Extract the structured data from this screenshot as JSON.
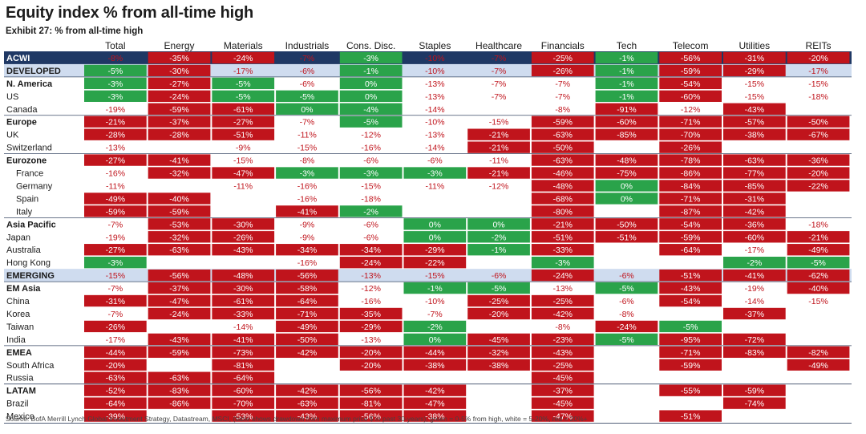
{
  "title": "Equity index % from all-time high",
  "subtitle": "Exhibit 27: % from all-time high",
  "source": "Source: BofA Merrill Lynch Global Investment Strategy, Datastream, MSCI, (table shows drawdown from maximum price $ in past 30-years), green = 0-5% from high, white = 5-20%, red = 20%+",
  "colors": {
    "red": "#c0141c",
    "green": "#2aa34a",
    "navy": "#1f3864",
    "lightblue": "#cfdcef",
    "white": "#ffffff",
    "text_dark": "#1a1a1a",
    "text_red": "#c0141c",
    "text_white": "#ffffff"
  },
  "chart_data": {
    "type": "table",
    "columns": [
      "Total",
      "Energy",
      "Materials",
      "Industrials",
      "Cons. Disc.",
      "Staples",
      "Healthcare",
      "Financials",
      "Tech",
      "Telecom",
      "Utilities",
      "REITs"
    ],
    "rows": [
      {
        "name": "ACWI",
        "bold": true,
        "band": "navy",
        "values": [
          "-8%",
          "-35%",
          "-24%",
          "-7%",
          "-3%",
          "-10%",
          "-7%",
          "-25%",
          "-1%",
          "-56%",
          "-31%",
          "-20%"
        ]
      },
      {
        "name": "DEVELOPED",
        "bold": true,
        "band": "lightblue",
        "values": [
          "-5%",
          "-30%",
          "-17%",
          "-6%",
          "-1%",
          "-10%",
          "-7%",
          "-26%",
          "-1%",
          "-59%",
          "-29%",
          "-17%"
        ]
      },
      {
        "name": "N. America",
        "bold": true,
        "values": [
          "-3%",
          "-27%",
          "-5%",
          "-6%",
          "0%",
          "-13%",
          "-7%",
          "-7%",
          "-1%",
          "-54%",
          "-15%",
          "-15%"
        ]
      },
      {
        "name": "US",
        "values": [
          "-3%",
          "-24%",
          "-5%",
          "-5%",
          "0%",
          "-13%",
          "-7%",
          "-7%",
          "-1%",
          "-60%",
          "-15%",
          "-18%"
        ]
      },
      {
        "name": "Canada",
        "values": [
          "-19%",
          "-59%",
          "-61%",
          "0%",
          "-4%",
          "-14%",
          "",
          "-8%",
          "-91%",
          "-12%",
          "-43%",
          ""
        ]
      },
      {
        "name": "Europe",
        "bold": true,
        "values": [
          "-21%",
          "-37%",
          "-27%",
          "-7%",
          "-5%",
          "-10%",
          "-15%",
          "-59%",
          "-60%",
          "-71%",
          "-57%",
          "-50%"
        ]
      },
      {
        "name": "UK",
        "values": [
          "-28%",
          "-28%",
          "-51%",
          "-11%",
          "-12%",
          "-13%",
          "-21%",
          "-63%",
          "-85%",
          "-70%",
          "-38%",
          "-67%"
        ]
      },
      {
        "name": "Switzerland",
        "values": [
          "-13%",
          "",
          "-9%",
          "-15%",
          "-16%",
          "-14%",
          "-21%",
          "-50%",
          "",
          "-26%",
          "",
          ""
        ]
      },
      {
        "name": "Eurozone",
        "bold": true,
        "values": [
          "-27%",
          "-41%",
          "-15%",
          "-8%",
          "-6%",
          "-6%",
          "-11%",
          "-63%",
          "-48%",
          "-78%",
          "-63%",
          "-36%"
        ]
      },
      {
        "name": "France",
        "indent": true,
        "values": [
          "-16%",
          "-32%",
          "-47%",
          "-3%",
          "-3%",
          "-3%",
          "-21%",
          "-46%",
          "-75%",
          "-86%",
          "-77%",
          "-20%"
        ]
      },
      {
        "name": "Germany",
        "indent": true,
        "values": [
          "-11%",
          "",
          "-11%",
          "-16%",
          "-15%",
          "-11%",
          "-12%",
          "-48%",
          "0%",
          "-84%",
          "-85%",
          "-22%"
        ]
      },
      {
        "name": "Spain",
        "indent": true,
        "values": [
          "-49%",
          "-40%",
          "",
          "-16%",
          "-18%",
          "",
          "",
          "-68%",
          "0%",
          "-71%",
          "-31%",
          ""
        ]
      },
      {
        "name": "Italy",
        "indent": true,
        "values": [
          "-59%",
          "-59%",
          "",
          "-41%",
          "-2%",
          "",
          "",
          "-80%",
          "",
          "-87%",
          "-42%",
          ""
        ]
      },
      {
        "name": "Asia Pacific",
        "bold": true,
        "values": [
          "-7%",
          "-53%",
          "-30%",
          "-9%",
          "-6%",
          "0%",
          "0%",
          "-21%",
          "-50%",
          "-54%",
          "-36%",
          "-18%"
        ]
      },
      {
        "name": "Japan",
        "values": [
          "-19%",
          "-32%",
          "-26%",
          "-9%",
          "-6%",
          "0%",
          "-2%",
          "-51%",
          "-51%",
          "-59%",
          "-60%",
          "-21%"
        ]
      },
      {
        "name": "Australia",
        "values": [
          "-27%",
          "-63%",
          "-43%",
          "-34%",
          "-34%",
          "-29%",
          "-1%",
          "-33%",
          "",
          "-64%",
          "-17%",
          "-49%"
        ]
      },
      {
        "name": "Hong Kong",
        "values": [
          "-3%",
          "",
          "",
          "-16%",
          "-24%",
          "-22%",
          "",
          "-3%",
          "",
          "",
          "-2%",
          "-5%"
        ]
      },
      {
        "name": "EMERGING",
        "bold": true,
        "band": "lightblue",
        "values": [
          "-15%",
          "-56%",
          "-48%",
          "-56%",
          "-13%",
          "-15%",
          "-6%",
          "-24%",
          "-6%",
          "-51%",
          "-41%",
          "-62%"
        ]
      },
      {
        "name": "EM Asia",
        "bold": true,
        "values": [
          "-7%",
          "-37%",
          "-30%",
          "-58%",
          "-12%",
          "-1%",
          "-5%",
          "-13%",
          "-5%",
          "-43%",
          "-19%",
          "-40%"
        ]
      },
      {
        "name": "China",
        "values": [
          "-31%",
          "-47%",
          "-61%",
          "-64%",
          "-16%",
          "-10%",
          "-25%",
          "-25%",
          "-6%",
          "-54%",
          "-14%",
          "-15%"
        ]
      },
      {
        "name": "Korea",
        "values": [
          "-7%",
          "-24%",
          "-33%",
          "-71%",
          "-35%",
          "-7%",
          "-20%",
          "-42%",
          "-8%",
          "",
          "-37%",
          ""
        ]
      },
      {
        "name": "Taiwan",
        "values": [
          "-26%",
          "",
          "-14%",
          "-49%",
          "-29%",
          "-2%",
          "",
          "-8%",
          "-24%",
          "-5%",
          "",
          ""
        ]
      },
      {
        "name": "India",
        "values": [
          "-17%",
          "-43%",
          "-41%",
          "-50%",
          "-13%",
          "0%",
          "-45%",
          "-23%",
          "-5%",
          "-95%",
          "-72%",
          ""
        ]
      },
      {
        "name": "EMEA",
        "bold": true,
        "values": [
          "-44%",
          "-59%",
          "-73%",
          "-42%",
          "-20%",
          "-44%",
          "-32%",
          "-43%",
          "",
          "-71%",
          "-83%",
          "-82%"
        ]
      },
      {
        "name": "South Africa",
        "values": [
          "-20%",
          "",
          "-81%",
          "",
          "-20%",
          "-38%",
          "-38%",
          "-25%",
          "",
          "-59%",
          "",
          "-49%"
        ]
      },
      {
        "name": "Russia",
        "values": [
          "-63%",
          "-63%",
          "-64%",
          "",
          "",
          "",
          "",
          "-45%",
          "",
          "",
          "",
          ""
        ]
      },
      {
        "name": "LATAM",
        "bold": true,
        "values": [
          "-52%",
          "-83%",
          "-60%",
          "-42%",
          "-56%",
          "-42%",
          "",
          "-37%",
          "",
          "-55%",
          "-59%",
          ""
        ]
      },
      {
        "name": "Brazil",
        "values": [
          "-64%",
          "-86%",
          "-70%",
          "-63%",
          "-81%",
          "-47%",
          "",
          "-45%",
          "",
          "",
          "-74%",
          ""
        ]
      },
      {
        "name": "Mexico",
        "values": [
          "-39%",
          "",
          "-53%",
          "-43%",
          "-56%",
          "-38%",
          "",
          "-47%",
          "",
          "-51%",
          "",
          ""
        ]
      }
    ],
    "legend": "green = 0-5% from high, white = 5-20%, red = 20%+"
  }
}
